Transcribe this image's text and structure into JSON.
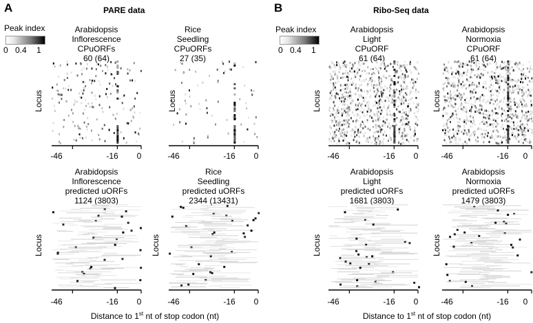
{
  "sections": [
    {
      "letter": "A",
      "heading": "PARE data",
      "legend": {
        "title": "Peak index",
        "ticks": [
          "0",
          "0.4",
          "1"
        ]
      },
      "panels": [
        {
          "title": [
            "Arabidopsis",
            "Inflorescence",
            "CPuORFs",
            "60 (64)"
          ],
          "ylabel": "Locus",
          "ticks": [
            "-46",
            "-16",
            "0"
          ],
          "density": "sparse",
          "stripe": true
        },
        {
          "title": [
            "Rice",
            "Seedling",
            "CPuORFs",
            "27 (35)"
          ],
          "ylabel": "Locus",
          "ticks": [
            "-46",
            "-16",
            "0"
          ],
          "density": "verysparse",
          "stripe": true
        },
        {
          "title": [
            "Arabidopsis",
            "Inflorescence",
            "predicted uORFs",
            "1124 (3803)"
          ],
          "ylabel": "Locus",
          "ticks": [
            "-46",
            "-16",
            "0"
          ],
          "density": "lines",
          "stripe": false
        },
        {
          "title": [
            "Rice",
            "Seedling",
            "predicted uORFs",
            "2344 (13431)"
          ],
          "ylabel": "Locus",
          "ticks": [
            "-46",
            "-16",
            "0"
          ],
          "density": "lines",
          "stripe": false
        }
      ],
      "xlabel_main": "Distance to 1",
      "xlabel_sup": "st",
      "xlabel_rest": " nt of stop codon (nt)"
    },
    {
      "letter": "B",
      "heading": "Ribo-Seq data",
      "legend": {
        "title": "Peak index",
        "ticks": [
          "0",
          "0.4",
          "1"
        ]
      },
      "panels": [
        {
          "title": [
            "Arabidopsis",
            "Light",
            "CPuORF",
            "61 (64)"
          ],
          "ylabel": "Locus",
          "ticks": [
            "-46",
            "-16",
            "0"
          ],
          "density": "dense",
          "stripe": true
        },
        {
          "title": [
            "Arabidopsis",
            "Normoxia",
            "CPuORF",
            "61 (64)"
          ],
          "ylabel": "Locus",
          "ticks": [
            "-46",
            "-16",
            "0"
          ],
          "density": "dense",
          "stripe": true
        },
        {
          "title": [
            "Arabidopsis",
            "Light",
            "predicted uORFs",
            "1681 (3803)"
          ],
          "ylabel": "Locus",
          "ticks": [
            "-46",
            "-16",
            "0"
          ],
          "density": "lines",
          "stripe": false
        },
        {
          "title": [
            "Arabidopsis",
            "Normoxia",
            "predicted uORFs",
            "1479 (3803)"
          ],
          "ylabel": "Locus",
          "ticks": [
            "-46",
            "-16",
            "0"
          ],
          "density": "lines",
          "stripe": false
        }
      ],
      "xlabel_main": "Distance to 1",
      "xlabel_sup": "st",
      "xlabel_rest": " nt of stop codon (nt)"
    }
  ]
}
